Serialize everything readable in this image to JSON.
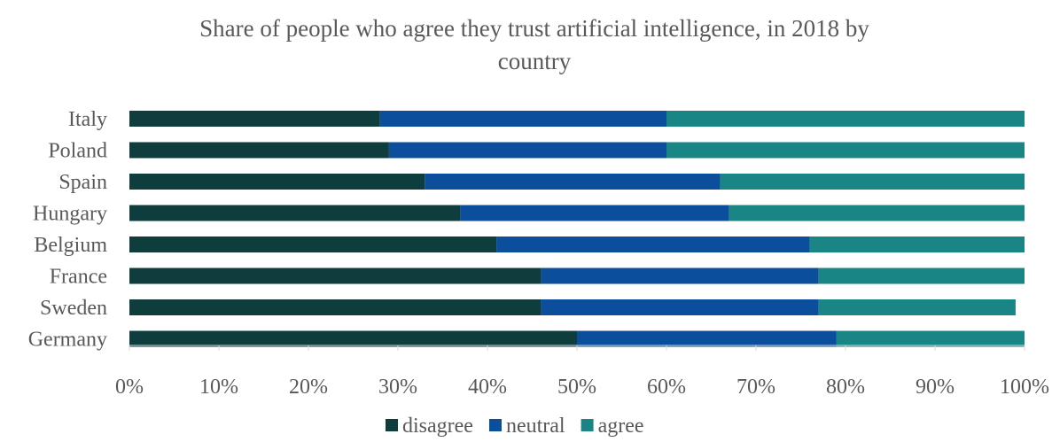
{
  "chart_data": {
    "type": "bar",
    "orientation": "horizontal",
    "stacked": true,
    "title_lines": [
      "Share of people who agree they trust artificial intelligence, in 2018 by",
      "country"
    ],
    "categories": [
      "Italy",
      "Poland",
      "Spain",
      "Hungary",
      "Belgium",
      "France",
      "Sweden",
      "Germany"
    ],
    "series": [
      {
        "name": "disagree",
        "color": "#0f3d3e",
        "values": [
          28,
          29,
          33,
          37,
          41,
          46,
          46,
          50
        ]
      },
      {
        "name": "neutral",
        "color": "#0b4f9c",
        "values": [
          32,
          31,
          33,
          30,
          35,
          31,
          31,
          29
        ]
      },
      {
        "name": "agree",
        "color": "#1a8585",
        "values": [
          40,
          40,
          34,
          33,
          24,
          23,
          22,
          21
        ]
      }
    ],
    "x_ticks": [
      "0%",
      "10%",
      "20%",
      "30%",
      "40%",
      "50%",
      "60%",
      "70%",
      "80%",
      "90%",
      "100%"
    ],
    "xlim": [
      0,
      100
    ],
    "x_unit": "percent",
    "grid": false,
    "legend_position": "bottom"
  }
}
